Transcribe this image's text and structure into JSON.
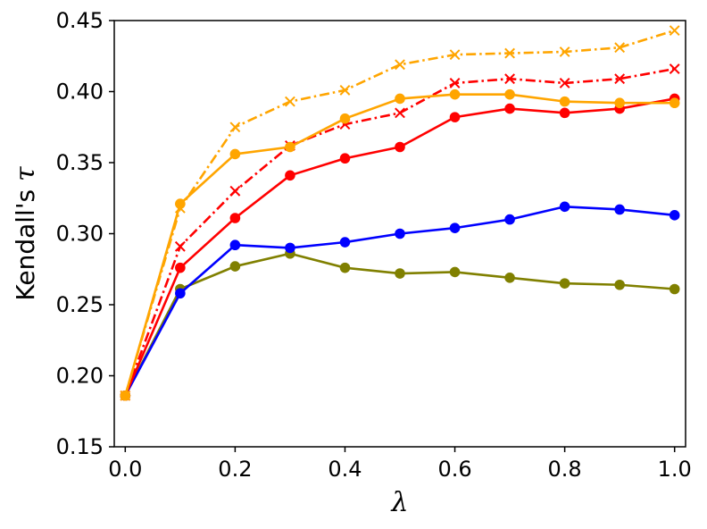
{
  "chart_data": {
    "type": "line",
    "xlabel": "λ",
    "ylabel_text": "Kendall's ",
    "ylabel_symbol": "τ",
    "x": [
      0.0,
      0.1,
      0.2,
      0.3,
      0.4,
      0.5,
      0.6,
      0.7,
      0.8,
      0.9,
      1.0
    ],
    "xlim": [
      -0.02,
      1.02
    ],
    "ylim": [
      0.15,
      0.45
    ],
    "xticks": [
      "0.0",
      "0.2",
      "0.4",
      "0.6",
      "0.8",
      "1.0"
    ],
    "xtick_values": [
      0.0,
      0.2,
      0.4,
      0.6,
      0.8,
      1.0
    ],
    "yticks": [
      "0.15",
      "0.20",
      "0.25",
      "0.30",
      "0.35",
      "0.40",
      "0.45"
    ],
    "ytick_values": [
      0.15,
      0.2,
      0.25,
      0.3,
      0.35,
      0.4,
      0.45
    ],
    "series": [
      {
        "name": "olive-circle-solid",
        "color": "#808000",
        "marker": "circle",
        "dash": "solid",
        "values": [
          0.186,
          0.261,
          0.277,
          0.286,
          0.276,
          0.272,
          0.273,
          0.269,
          0.265,
          0.264,
          0.261
        ]
      },
      {
        "name": "blue-circle-solid",
        "color": "#0000ff",
        "marker": "circle",
        "dash": "solid",
        "values": [
          0.186,
          0.258,
          0.292,
          0.29,
          0.294,
          0.3,
          0.304,
          0.31,
          0.319,
          0.317,
          0.313
        ]
      },
      {
        "name": "red-circle-solid",
        "color": "#ff0000",
        "marker": "circle",
        "dash": "solid",
        "values": [
          0.186,
          0.276,
          0.311,
          0.341,
          0.353,
          0.361,
          0.382,
          0.388,
          0.385,
          0.388,
          0.395
        ]
      },
      {
        "name": "red-x-dashdot",
        "color": "#ff0000",
        "marker": "x",
        "dash": "dashdot",
        "values": [
          0.186,
          0.291,
          0.33,
          0.362,
          0.377,
          0.385,
          0.406,
          0.409,
          0.406,
          0.409,
          0.416
        ]
      },
      {
        "name": "orange-circle-solid",
        "color": "#ffa500",
        "marker": "circle",
        "dash": "solid",
        "values": [
          0.186,
          0.321,
          0.356,
          0.361,
          0.381,
          0.395,
          0.398,
          0.398,
          0.393,
          0.392,
          0.392
        ]
      },
      {
        "name": "orange-x-dashdot",
        "color": "#ffa500",
        "marker": "x",
        "dash": "dashdot",
        "values": [
          0.186,
          0.318,
          0.375,
          0.393,
          0.401,
          0.419,
          0.426,
          0.427,
          0.428,
          0.431,
          0.443
        ]
      }
    ]
  }
}
